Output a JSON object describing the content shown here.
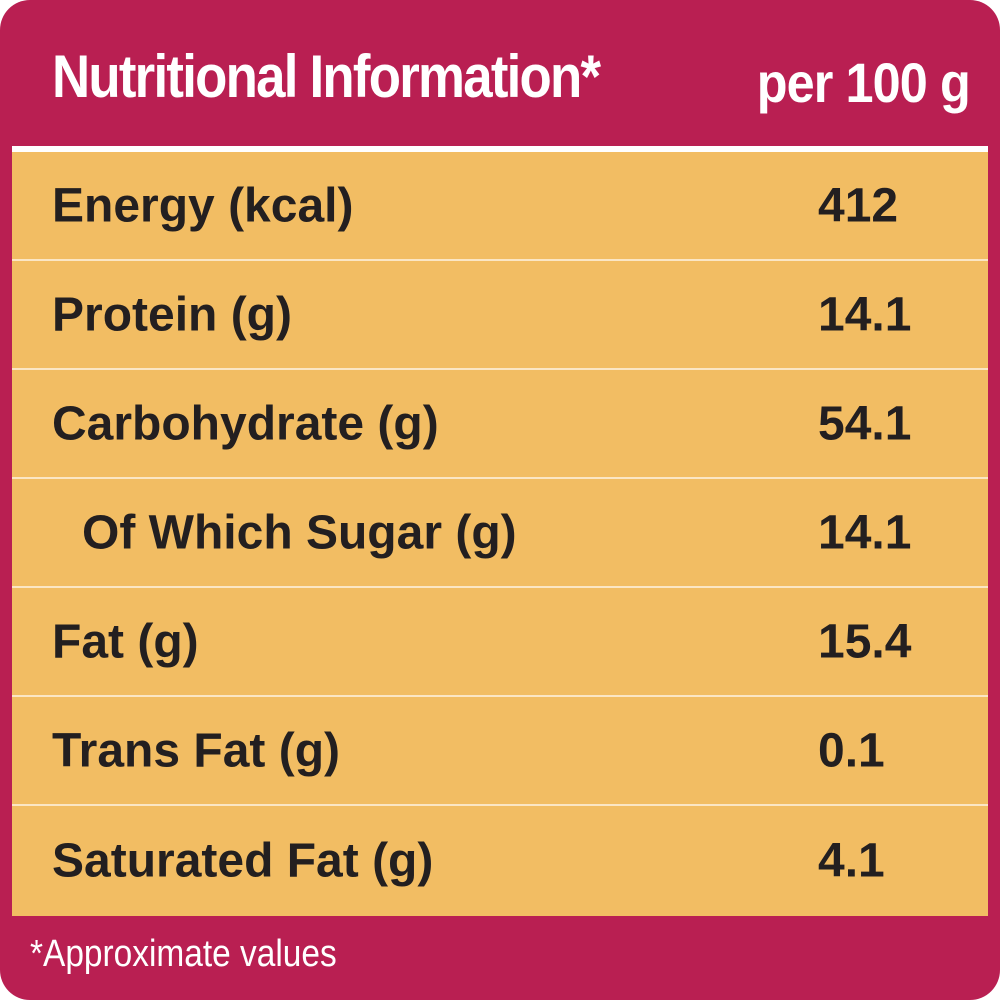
{
  "header": {
    "title": "Nutritional Information*",
    "unit": "per 100 g"
  },
  "table": {
    "rows": [
      [
        "Energy (kcal)",
        412
      ],
      [
        "Protein (g)",
        14.1
      ],
      [
        "Carbohydrate (g)",
        54.1
      ],
      [
        "Of Which Sugar (g)",
        14.1
      ],
      [
        "Fat (g)",
        15.4
      ],
      [
        "Trans Fat (g)",
        0.1
      ],
      [
        "Saturated Fat (g)",
        4.1
      ]
    ]
  },
  "footnote": "*Approximate values"
}
